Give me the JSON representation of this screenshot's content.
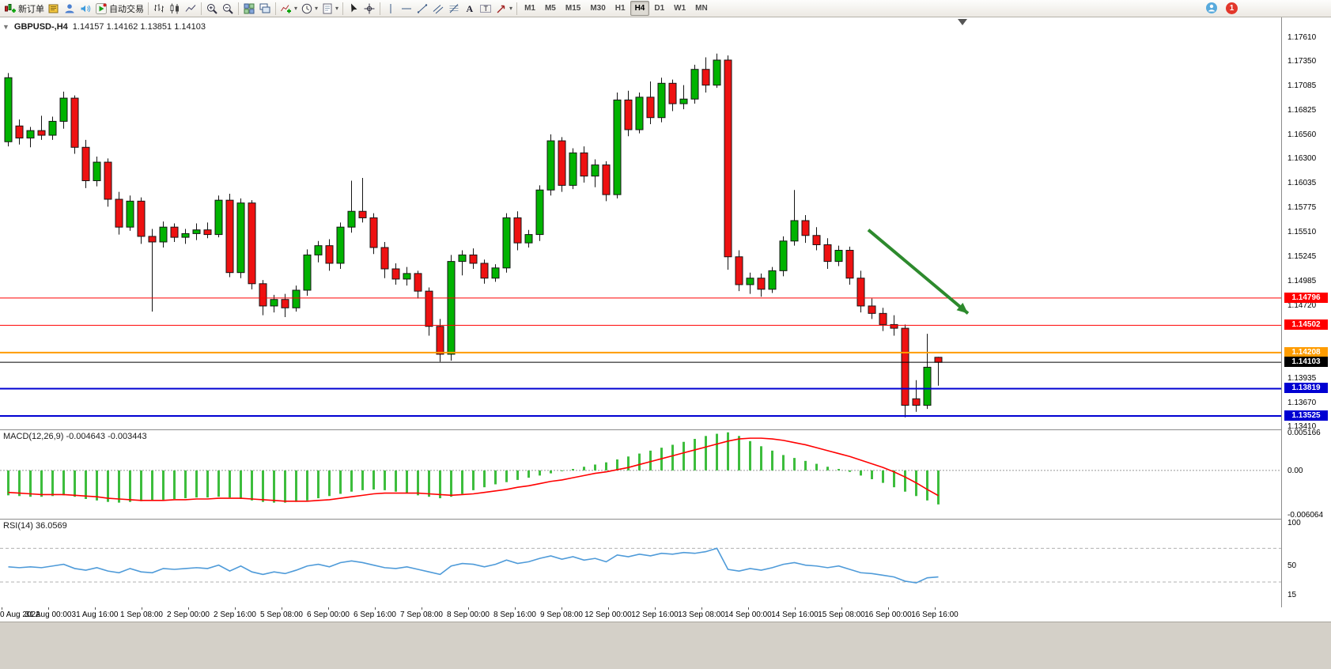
{
  "toolbar": {
    "notification_count": "1",
    "groups": [
      {
        "name": "trade",
        "items": [
          {
            "name": "new-order-button",
            "icon": "new-order-icon",
            "label": "新订单"
          },
          {
            "name": "market-watch-button",
            "icon": "book-icon"
          },
          {
            "name": "data-window-button",
            "icon": "profile-icon"
          },
          {
            "name": "sound-button",
            "icon": "sound-icon"
          },
          {
            "name": "auto-trading-button",
            "icon": "play-icon",
            "label": "自动交易"
          }
        ]
      },
      {
        "name": "chart-type",
        "items": [
          {
            "name": "bar-chart-button",
            "icon": "bars-icon"
          },
          {
            "name": "candlestick-chart-button",
            "icon": "candles-icon"
          },
          {
            "name": "line-chart-button",
            "icon": "line-icon"
          }
        ]
      },
      {
        "name": "zoom",
        "items": [
          {
            "name": "zoom-in-button",
            "icon": "zoom-in-icon"
          },
          {
            "name": "zoom-out-button",
            "icon": "zoom-out-icon"
          }
        ]
      },
      {
        "name": "windows",
        "items": [
          {
            "name": "tile-windows-button",
            "icon": "tile-icon"
          },
          {
            "name": "cascade-windows-button",
            "icon": "cascade-icon"
          }
        ]
      },
      {
        "name": "chart-tools",
        "items": [
          {
            "name": "indicators-button",
            "icon": "indicator-icon",
            "caret": true
          },
          {
            "name": "periods-button",
            "icon": "clock-icon",
            "caret": true
          },
          {
            "name": "templates-button",
            "icon": "template-icon",
            "caret": true
          }
        ]
      },
      {
        "name": "pointer",
        "items": [
          {
            "name": "cursor-button",
            "icon": "cursor-icon"
          },
          {
            "name": "crosshair-button",
            "icon": "crosshair-icon"
          }
        ]
      },
      {
        "name": "objects",
        "items": [
          {
            "name": "vertical-line-button",
            "icon": "vline-icon"
          },
          {
            "name": "horizontal-line-button",
            "icon": "hline-icon"
          },
          {
            "name": "trendline-button",
            "icon": "trendline-icon"
          },
          {
            "name": "channel-button",
            "icon": "channel-icon"
          },
          {
            "name": "fibonacci-button",
            "icon": "fibo-icon"
          },
          {
            "name": "text-button",
            "icon": "text-icon"
          },
          {
            "name": "label-button",
            "icon": "label-icon"
          },
          {
            "name": "arrows-button",
            "icon": "arrow-shape-icon",
            "caret": true
          }
        ]
      }
    ],
    "timeframes": [
      {
        "label": "M1"
      },
      {
        "label": "M5"
      },
      {
        "label": "M15"
      },
      {
        "label": "M30"
      },
      {
        "label": "H1"
      },
      {
        "label": "H4",
        "active": true
      },
      {
        "label": "D1"
      },
      {
        "label": "W1"
      },
      {
        "label": "MN"
      }
    ]
  },
  "chart": {
    "symbol": "GBPUSD-,H4",
    "ohlc_text": "1.14157 1.14162 1.13851 1.14103"
  },
  "colors": {
    "candle_up": "#00b300",
    "candle_down": "#ee1111",
    "wick": "#151515",
    "background": "#ffffff"
  },
  "chart_data": [
    {
      "type": "candlestick",
      "title": "GBPUSD-,H4",
      "ohlc_display": [
        "1.14157",
        "1.14162",
        "1.13851",
        "1.14103"
      ],
      "ylim": [
        1.1338,
        1.1782
      ],
      "grid": false,
      "y_ticks": [
        {
          "v": 1.1761,
          "label": "1.17610"
        },
        {
          "v": 1.1735,
          "label": "1.17350"
        },
        {
          "v": 1.17085,
          "label": "1.17085"
        },
        {
          "v": 1.16825,
          "label": "1.16825"
        },
        {
          "v": 1.1656,
          "label": "1.16560"
        },
        {
          "v": 1.163,
          "label": "1.16300"
        },
        {
          "v": 1.16035,
          "label": "1.16035"
        },
        {
          "v": 1.15775,
          "label": "1.15775"
        },
        {
          "v": 1.1551,
          "label": "1.15510"
        },
        {
          "v": 1.15245,
          "label": "1.15245"
        },
        {
          "v": 1.14985,
          "label": "1.14985"
        },
        {
          "v": 1.1472,
          "label": "1.14720"
        },
        {
          "v": 1.13935,
          "label": "1.13935"
        },
        {
          "v": 1.1367,
          "label": "1.13670"
        },
        {
          "v": 1.1341,
          "label": "1.13410"
        }
      ],
      "x_labels": [
        "0 Aug 2022",
        "31 Aug 00:00",
        "31 Aug 16:00",
        "1 Sep 08:00",
        "2 Sep 00:00",
        "2 Sep 16:00",
        "5 Sep 08:00",
        "6 Sep 00:00",
        "6 Sep 16:00",
        "7 Sep 08:00",
        "8 Sep 00:00",
        "8 Sep 16:00",
        "9 Sep 08:00",
        "12 Sep 00:00",
        "12 Sep 16:00",
        "13 Sep 08:00",
        "14 Sep 00:00",
        "14 Sep 16:00",
        "15 Sep 08:00",
        "16 Sep 00:00",
        "16 Sep 16:00"
      ],
      "hlines": [
        {
          "name": "resistance-line-1",
          "price": 1.14796,
          "label": "1.14796",
          "color": "#ff0000",
          "width": 1
        },
        {
          "name": "resistance-line-2",
          "price": 1.14502,
          "label": "1.14502",
          "color": "#ff0000",
          "width": 1
        },
        {
          "name": "pivot-line",
          "price": 1.14208,
          "label": "1.14208",
          "color": "#ff9c00",
          "width": 2
        },
        {
          "name": "current-price-line",
          "price": 1.14103,
          "label": "1.14103",
          "color": "#000000",
          "width": 1
        },
        {
          "name": "support-line-1",
          "price": 1.13819,
          "label": "1.13819",
          "color": "#0000d2",
          "width": 2
        },
        {
          "name": "support-line-2",
          "price": 1.13525,
          "label": "1.13525",
          "color": "#0000d2",
          "width": 2
        }
      ],
      "arrow": {
        "from_index": 78,
        "from_price": 1.1553,
        "to_index": 87,
        "to_price": 1.1463,
        "color": "#2d8a2d"
      },
      "candles": [
        [
          1.1648,
          1.1722,
          1.1643,
          1.1717
        ],
        [
          1.1665,
          1.1672,
          1.1645,
          1.1652
        ],
        [
          1.1652,
          1.1664,
          1.1642,
          1.166
        ],
        [
          1.166,
          1.1676,
          1.165,
          1.1655
        ],
        [
          1.1655,
          1.1675,
          1.165,
          1.167
        ],
        [
          1.167,
          1.1702,
          1.1662,
          1.1695
        ],
        [
          1.1695,
          1.1698,
          1.1635,
          1.1642
        ],
        [
          1.1642,
          1.165,
          1.1598,
          1.1606
        ],
        [
          1.1606,
          1.1632,
          1.16,
          1.1626
        ],
        [
          1.1626,
          1.163,
          1.1578,
          1.1586
        ],
        [
          1.1586,
          1.1594,
          1.1548,
          1.1556
        ],
        [
          1.1556,
          1.159,
          1.1552,
          1.1584
        ],
        [
          1.1584,
          1.1588,
          1.1538,
          1.1546
        ],
        [
          1.1546,
          1.1554,
          1.1465,
          1.154
        ],
        [
          1.154,
          1.1562,
          1.1534,
          1.1556
        ],
        [
          1.1556,
          1.156,
          1.154,
          1.1545
        ],
        [
          1.1545,
          1.1554,
          1.1538,
          1.1549
        ],
        [
          1.1549,
          1.156,
          1.1542,
          1.1553
        ],
        [
          1.1553,
          1.1561,
          1.1544,
          1.1548
        ],
        [
          1.1548,
          1.159,
          1.1545,
          1.1585
        ],
        [
          1.1585,
          1.1592,
          1.1502,
          1.1507
        ],
        [
          1.1507,
          1.1587,
          1.1501,
          1.1582
        ],
        [
          1.1582,
          1.1585,
          1.1489,
          1.1495
        ],
        [
          1.1495,
          1.1499,
          1.1461,
          1.1471
        ],
        [
          1.1471,
          1.1483,
          1.1464,
          1.1478
        ],
        [
          1.1478,
          1.1484,
          1.1459,
          1.1469
        ],
        [
          1.1469,
          1.1493,
          1.1465,
          1.1488
        ],
        [
          1.1488,
          1.1532,
          1.1482,
          1.1526
        ],
        [
          1.1526,
          1.1541,
          1.1518,
          1.1536
        ],
        [
          1.1536,
          1.1543,
          1.1509,
          1.1517
        ],
        [
          1.1517,
          1.1561,
          1.1511,
          1.1556
        ],
        [
          1.1556,
          1.1606,
          1.155,
          1.1573
        ],
        [
          1.1573,
          1.1609,
          1.1561,
          1.1566
        ],
        [
          1.1566,
          1.1571,
          1.1527,
          1.1534
        ],
        [
          1.1534,
          1.154,
          1.1501,
          1.1511
        ],
        [
          1.1511,
          1.1517,
          1.1494,
          1.15
        ],
        [
          1.15,
          1.1513,
          1.1493,
          1.1506
        ],
        [
          1.1506,
          1.1509,
          1.1479,
          1.1487
        ],
        [
          1.1487,
          1.1491,
          1.1439,
          1.1449
        ],
        [
          1.1449,
          1.1457,
          1.1411,
          1.1419
        ],
        [
          1.1419,
          1.1526,
          1.1412,
          1.1519
        ],
        [
          1.1519,
          1.1531,
          1.1504,
          1.1526
        ],
        [
          1.1526,
          1.1533,
          1.1511,
          1.1517
        ],
        [
          1.1517,
          1.1521,
          1.1495,
          1.1501
        ],
        [
          1.1501,
          1.1516,
          1.1497,
          1.1512
        ],
        [
          1.1512,
          1.1571,
          1.1507,
          1.1566
        ],
        [
          1.1566,
          1.1573,
          1.1531,
          1.1539
        ],
        [
          1.1539,
          1.1553,
          1.1534,
          1.1548
        ],
        [
          1.1548,
          1.1601,
          1.1541,
          1.1596
        ],
        [
          1.1596,
          1.1656,
          1.159,
          1.1649
        ],
        [
          1.1649,
          1.1653,
          1.1594,
          1.1601
        ],
        [
          1.1601,
          1.1641,
          1.1597,
          1.1636
        ],
        [
          1.1636,
          1.1643,
          1.1604,
          1.1611
        ],
        [
          1.1611,
          1.1629,
          1.1599,
          1.1623
        ],
        [
          1.1623,
          1.1627,
          1.1584,
          1.1591
        ],
        [
          1.1591,
          1.1701,
          1.1587,
          1.1693
        ],
        [
          1.1693,
          1.1703,
          1.1654,
          1.1661
        ],
        [
          1.1661,
          1.1701,
          1.1657,
          1.1696
        ],
        [
          1.1696,
          1.1713,
          1.1667,
          1.1674
        ],
        [
          1.1674,
          1.1717,
          1.1669,
          1.1711
        ],
        [
          1.1711,
          1.1715,
          1.1681,
          1.1689
        ],
        [
          1.1689,
          1.1709,
          1.1683,
          1.1694
        ],
        [
          1.1694,
          1.1731,
          1.1689,
          1.1726
        ],
        [
          1.1726,
          1.1739,
          1.1701,
          1.1709
        ],
        [
          1.1709,
          1.1743,
          1.1706,
          1.1736
        ],
        [
          1.1736,
          1.1741,
          1.151,
          1.1524
        ],
        [
          1.1524,
          1.1531,
          1.1487,
          1.1494
        ],
        [
          1.1494,
          1.1507,
          1.1484,
          1.1501
        ],
        [
          1.1501,
          1.1506,
          1.1481,
          1.1489
        ],
        [
          1.1489,
          1.1513,
          1.1485,
          1.1509
        ],
        [
          1.1509,
          1.1546,
          1.1503,
          1.1541
        ],
        [
          1.1541,
          1.1596,
          1.1536,
          1.1563
        ],
        [
          1.1563,
          1.1569,
          1.1539,
          1.1547
        ],
        [
          1.1547,
          1.1556,
          1.1531,
          1.1537
        ],
        [
          1.1537,
          1.1544,
          1.1511,
          1.1519
        ],
        [
          1.1519,
          1.1536,
          1.1514,
          1.1531
        ],
        [
          1.1531,
          1.1535,
          1.1494,
          1.1501
        ],
        [
          1.1501,
          1.1509,
          1.1464,
          1.1471
        ],
        [
          1.1471,
          1.1479,
          1.1457,
          1.1463
        ],
        [
          1.1463,
          1.1469,
          1.1444,
          1.1451
        ],
        [
          1.1451,
          1.1461,
          1.1439,
          1.1447
        ],
        [
          1.1447,
          1.1451,
          1.1351,
          1.1364
        ],
        [
          1.1371,
          1.1391,
          1.1357,
          1.1364
        ],
        [
          1.1364,
          1.1441,
          1.136,
          1.1405
        ],
        [
          1.14157,
          1.14162,
          1.13851,
          1.14103
        ]
      ]
    },
    {
      "type": "macd",
      "display": "MACD(12,26,9) -0.004643 -0.003443",
      "label": "MACD(12,26,9)",
      "values_label": [
        "-0.004643",
        "-0.003443"
      ],
      "ylim": [
        -0.0066,
        0.0056
      ],
      "y_ticks": [
        {
          "v": 0.005166,
          "label": "0.005166"
        },
        {
          "v": 0,
          "label": "0.00"
        },
        {
          "v": -0.006064,
          "label": "-0.006064"
        }
      ],
      "colors": {
        "histogram": "#3dbd3d",
        "signal": "#ff0000"
      },
      "histogram": [
        -0.0034,
        -0.0035,
        -0.0036,
        -0.0036,
        -0.0035,
        -0.0034,
        -0.0036,
        -0.0039,
        -0.0041,
        -0.0043,
        -0.0044,
        -0.0043,
        -0.0042,
        -0.0041,
        -0.004,
        -0.0039,
        -0.0038,
        -0.0037,
        -0.0037,
        -0.0036,
        -0.0037,
        -0.0039,
        -0.0041,
        -0.0043,
        -0.0044,
        -0.0044,
        -0.0043,
        -0.0041,
        -0.0038,
        -0.0035,
        -0.0032,
        -0.0029,
        -0.0027,
        -0.0026,
        -0.0027,
        -0.0029,
        -0.0031,
        -0.0034,
        -0.0036,
        -0.0038,
        -0.0036,
        -0.0032,
        -0.0027,
        -0.0023,
        -0.0019,
        -0.0016,
        -0.0013,
        -0.001,
        -0.0007,
        -0.0004,
        -0.0001,
        0.0002,
        0.0005,
        0.0008,
        0.0011,
        0.0015,
        0.0019,
        0.0023,
        0.0027,
        0.0031,
        0.0035,
        0.0039,
        0.0043,
        0.0047,
        0.005,
        0.0052,
        0.0047,
        0.004,
        0.0033,
        0.0027,
        0.0021,
        0.0017,
        0.0013,
        0.0009,
        0.0005,
        0.0002,
        -0.0002,
        -0.0007,
        -0.0012,
        -0.0017,
        -0.0023,
        -0.0029,
        -0.0035,
        -0.0041,
        -0.004643
      ],
      "signal": [
        -0.003,
        -0.0031,
        -0.0032,
        -0.0033,
        -0.0033,
        -0.0033,
        -0.0034,
        -0.0035,
        -0.0036,
        -0.0038,
        -0.0039,
        -0.004,
        -0.0041,
        -0.0041,
        -0.0041,
        -0.004,
        -0.004,
        -0.0039,
        -0.0039,
        -0.0038,
        -0.0038,
        -0.0038,
        -0.0039,
        -0.004,
        -0.0041,
        -0.0042,
        -0.0042,
        -0.0042,
        -0.0041,
        -0.004,
        -0.0038,
        -0.0036,
        -0.0034,
        -0.0032,
        -0.0031,
        -0.0031,
        -0.0031,
        -0.0031,
        -0.0032,
        -0.0033,
        -0.0034,
        -0.0033,
        -0.0032,
        -0.003,
        -0.0028,
        -0.0026,
        -0.0023,
        -0.0021,
        -0.0018,
        -0.0015,
        -0.0013,
        -0.001,
        -0.0007,
        -0.0004,
        -0.0002,
        0.0001,
        0.0004,
        0.0008,
        0.0012,
        0.0016,
        0.002,
        0.0024,
        0.0028,
        0.0032,
        0.0036,
        0.004,
        0.0043,
        0.0044,
        0.0044,
        0.0043,
        0.0041,
        0.0038,
        0.0035,
        0.0031,
        0.0027,
        0.0023,
        0.0019,
        0.0014,
        0.0009,
        0.0004,
        -0.0002,
        -0.0009,
        -0.0017,
        -0.0026,
        -0.003443
      ]
    },
    {
      "type": "rsi",
      "display": "RSI(14) 36.0569",
      "label": "RSI(14)",
      "value_label": "36.0569",
      "ylim": [
        0,
        105
      ],
      "levels": [
        70,
        30
      ],
      "color": "#4f9bd9",
      "y_ticks": [
        {
          "v": 100,
          "label": "100"
        },
        {
          "v": 50,
          "label": "50"
        },
        {
          "v": 15,
          "label": "15"
        }
      ],
      "values": [
        48,
        47,
        48,
        47,
        49,
        51,
        46,
        44,
        47,
        43,
        41,
        46,
        42,
        41,
        46,
        45,
        46,
        47,
        46,
        50,
        43,
        49,
        42,
        39,
        42,
        40,
        44,
        49,
        51,
        48,
        53,
        55,
        53,
        50,
        47,
        46,
        48,
        45,
        42,
        39,
        49,
        52,
        51,
        48,
        51,
        56,
        52,
        54,
        58,
        61,
        57,
        60,
        56,
        58,
        54,
        62,
        60,
        63,
        61,
        64,
        63,
        65,
        64,
        66,
        70,
        45,
        43,
        46,
        44,
        47,
        51,
        53,
        50,
        49,
        47,
        49,
        45,
        41,
        40,
        38,
        36,
        31,
        29,
        35,
        36
      ]
    }
  ]
}
